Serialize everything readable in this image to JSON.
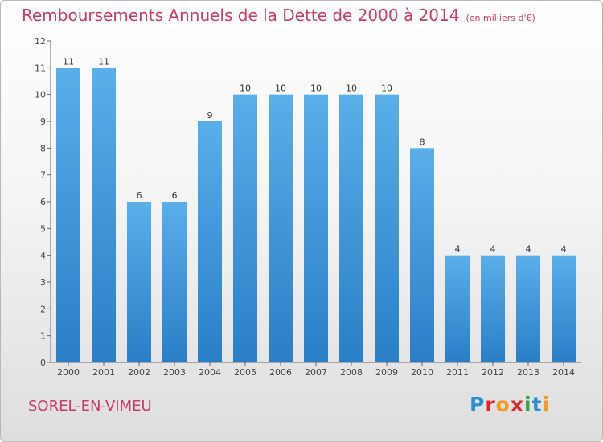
{
  "header": {
    "title": "Remboursements Annuels de la Dette de 2000 à 2014",
    "subtitle": "(en milliers d'€)"
  },
  "footer": {
    "commune": "SOREL-EN-VIMEU",
    "logo_text": "Proxiti"
  },
  "colors": {
    "title": "#c83a6a",
    "bar_top": "#5aaeea",
    "bar_bottom": "#2a7ec6"
  },
  "chart_data": {
    "type": "bar",
    "title": "Remboursements Annuels de la Dette de 2000 à 2014",
    "xlabel": "",
    "ylabel": "",
    "categories": [
      "2000",
      "2001",
      "2002",
      "2003",
      "2004",
      "2005",
      "2006",
      "2007",
      "2008",
      "2009",
      "2010",
      "2011",
      "2012",
      "2013",
      "2014"
    ],
    "values": [
      11,
      11,
      6,
      6,
      9,
      10,
      10,
      10,
      10,
      10,
      8,
      4,
      4,
      4,
      4
    ],
    "ylim": [
      0,
      12
    ],
    "yticks": [
      0,
      1,
      2,
      3,
      4,
      5,
      6,
      7,
      8,
      9,
      10,
      11,
      12
    ],
    "grid": false,
    "data_labels": true
  }
}
